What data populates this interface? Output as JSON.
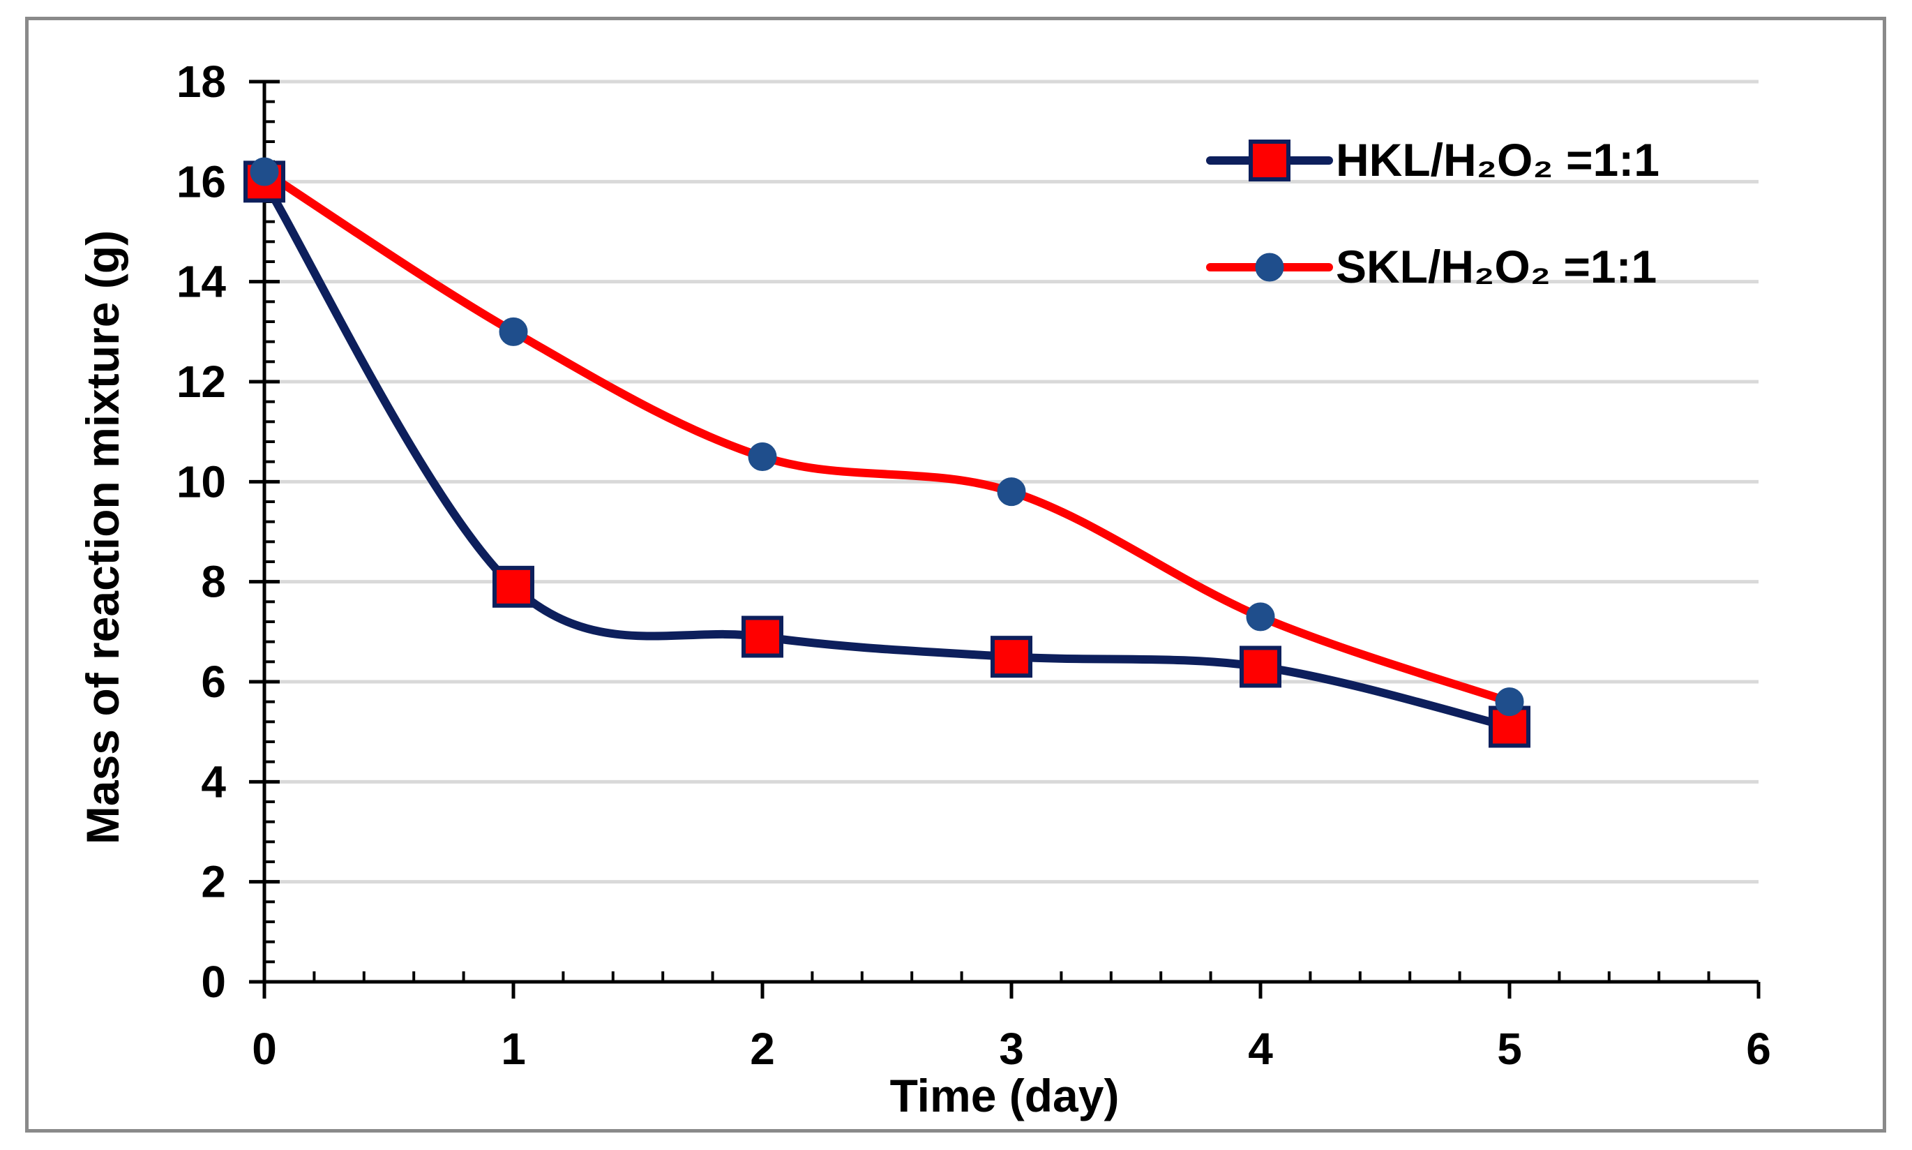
{
  "chart_data": {
    "type": "line",
    "title": "",
    "xlabel": "Time (day)",
    "ylabel": "Mass of reaction mixture (g)",
    "xlim": [
      0,
      6
    ],
    "ylim": [
      0,
      18
    ],
    "xticks": [
      0,
      1,
      2,
      3,
      4,
      5,
      6
    ],
    "yticks": [
      0,
      2,
      4,
      6,
      8,
      10,
      12,
      14,
      16,
      18
    ],
    "grid": "horizontal",
    "legend_position": "top-right",
    "smooth": true,
    "series": [
      {
        "name": "HKL/H₂O₂ =1:1",
        "line_color": "#0d1f5c",
        "marker": "square",
        "marker_fill": "#ff0000",
        "marker_edge": "#0d1f5c",
        "x": [
          0,
          1,
          2,
          3,
          4,
          5
        ],
        "y": [
          16.0,
          7.9,
          6.9,
          6.5,
          6.3,
          5.1
        ]
      },
      {
        "name": "SKL/H₂O₂ =1:1",
        "line_color": "#ff0000",
        "marker": "circle",
        "marker_fill": "#1f4e8c",
        "marker_edge": "#1f4e8c",
        "x": [
          0,
          1,
          2,
          3,
          4,
          5
        ],
        "y": [
          16.2,
          13.0,
          10.5,
          9.8,
          7.3,
          5.6
        ]
      }
    ]
  }
}
